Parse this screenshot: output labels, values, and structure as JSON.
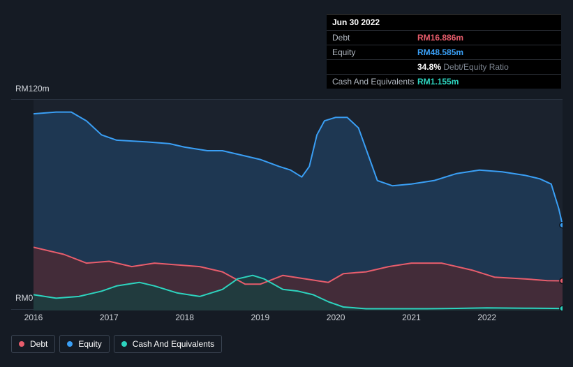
{
  "tooltip": {
    "date": "Jun 30 2022",
    "rows": {
      "debt": {
        "label": "Debt",
        "value": "RM16.886m",
        "color": "#e85d6c"
      },
      "equity": {
        "label": "Equity",
        "value": "RM48.585m",
        "color": "#3a9ff5"
      },
      "ratio": {
        "label": "",
        "pct": "34.8%",
        "text": "Debt/Equity Ratio"
      },
      "cash": {
        "label": "Cash And Equivalents",
        "value": "RM1.155m",
        "color": "#2dd4bf"
      }
    }
  },
  "chart": {
    "type": "area",
    "background_color": "#1b222d",
    "page_background": "#151b24",
    "grid_color": "#2a3340",
    "ylabel_top": "RM120m",
    "ylabel_bottom": "RM0",
    "ylim": [
      0,
      120
    ],
    "xticks": [
      "2016",
      "2017",
      "2018",
      "2019",
      "2020",
      "2021",
      "2022"
    ],
    "xrange": [
      2016,
      2023
    ],
    "label_fontsize": 12,
    "label_color": "#d0d4da",
    "series": {
      "equity": {
        "label": "Equity",
        "stroke": "#3a9ff5",
        "fill": "#1f3a57",
        "fill_opacity": 0.9,
        "line_width": 2,
        "data": [
          [
            2016.0,
            112
          ],
          [
            2016.3,
            113
          ],
          [
            2016.5,
            113
          ],
          [
            2016.7,
            108
          ],
          [
            2016.9,
            100
          ],
          [
            2017.1,
            97
          ],
          [
            2017.5,
            96
          ],
          [
            2017.8,
            95
          ],
          [
            2018.0,
            93
          ],
          [
            2018.3,
            91
          ],
          [
            2018.5,
            91
          ],
          [
            2018.7,
            89
          ],
          [
            2019.0,
            86
          ],
          [
            2019.25,
            82
          ],
          [
            2019.4,
            80
          ],
          [
            2019.55,
            76
          ],
          [
            2019.65,
            82
          ],
          [
            2019.75,
            100
          ],
          [
            2019.85,
            108
          ],
          [
            2020.0,
            110
          ],
          [
            2020.15,
            110
          ],
          [
            2020.3,
            104
          ],
          [
            2020.45,
            86
          ],
          [
            2020.55,
            74
          ],
          [
            2020.75,
            71
          ],
          [
            2021.0,
            72
          ],
          [
            2021.3,
            74
          ],
          [
            2021.6,
            78
          ],
          [
            2021.9,
            80
          ],
          [
            2022.2,
            79
          ],
          [
            2022.5,
            77
          ],
          [
            2022.7,
            75
          ],
          [
            2022.85,
            72
          ],
          [
            2022.95,
            58
          ],
          [
            2023.0,
            48.6
          ]
        ]
      },
      "debt": {
        "label": "Debt",
        "stroke": "#e85d6c",
        "fill": "#4a2a35",
        "fill_opacity": 0.85,
        "line_width": 2,
        "data": [
          [
            2016.0,
            36
          ],
          [
            2016.4,
            32
          ],
          [
            2016.7,
            27
          ],
          [
            2017.0,
            28
          ],
          [
            2017.3,
            25
          ],
          [
            2017.6,
            27
          ],
          [
            2017.9,
            26
          ],
          [
            2018.2,
            25
          ],
          [
            2018.5,
            22
          ],
          [
            2018.8,
            15
          ],
          [
            2019.0,
            15
          ],
          [
            2019.3,
            20
          ],
          [
            2019.6,
            18
          ],
          [
            2019.9,
            16
          ],
          [
            2020.1,
            21
          ],
          [
            2020.4,
            22
          ],
          [
            2020.7,
            25
          ],
          [
            2021.0,
            27
          ],
          [
            2021.4,
            27
          ],
          [
            2021.8,
            23
          ],
          [
            2022.1,
            19
          ],
          [
            2022.5,
            18
          ],
          [
            2022.8,
            17
          ],
          [
            2023.0,
            16.9
          ]
        ]
      },
      "cash": {
        "label": "Cash And Equivalents",
        "stroke": "#2dd4bf",
        "fill": "#1e3d3f",
        "fill_opacity": 0.9,
        "line_width": 2,
        "data": [
          [
            2016.0,
            9
          ],
          [
            2016.3,
            7
          ],
          [
            2016.6,
            8
          ],
          [
            2016.9,
            11
          ],
          [
            2017.1,
            14
          ],
          [
            2017.4,
            16
          ],
          [
            2017.6,
            14
          ],
          [
            2017.9,
            10
          ],
          [
            2018.2,
            8
          ],
          [
            2018.5,
            12
          ],
          [
            2018.7,
            18
          ],
          [
            2018.9,
            20
          ],
          [
            2019.05,
            18
          ],
          [
            2019.3,
            12
          ],
          [
            2019.5,
            11
          ],
          [
            2019.7,
            9
          ],
          [
            2019.9,
            5
          ],
          [
            2020.1,
            2
          ],
          [
            2020.4,
            1
          ],
          [
            2020.8,
            1
          ],
          [
            2021.2,
            1
          ],
          [
            2021.6,
            1.2
          ],
          [
            2022.0,
            1.5
          ],
          [
            2022.5,
            1.3
          ],
          [
            2023.0,
            1.16
          ]
        ]
      }
    },
    "legend_border": "#3a4452"
  }
}
